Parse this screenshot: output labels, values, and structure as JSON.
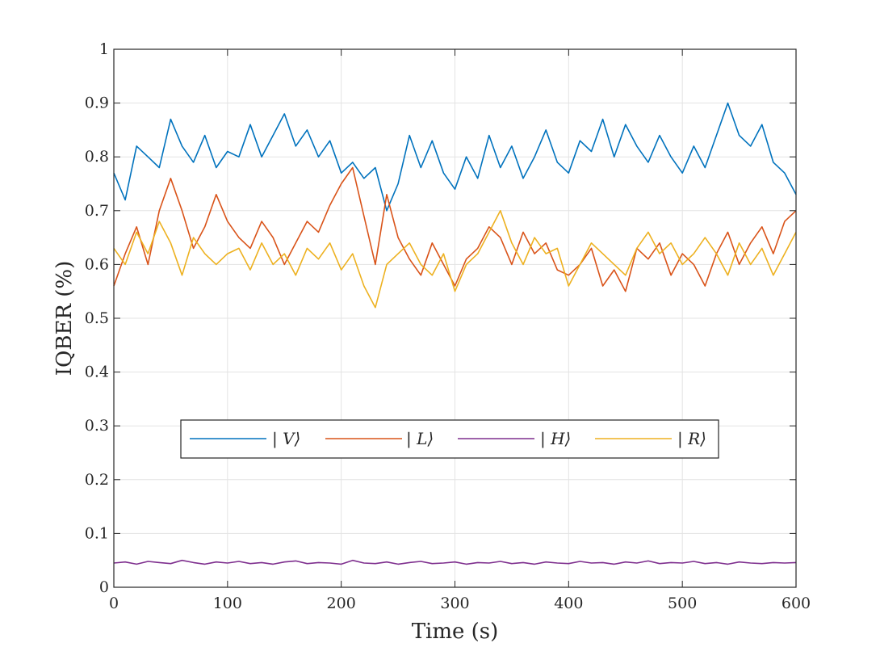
{
  "chart_data": {
    "type": "line",
    "title": "",
    "xlabel": "Time (s)",
    "ylabel": "IQBER (%)",
    "xlim": [
      0,
      600
    ],
    "ylim": [
      0,
      1
    ],
    "xticks": [
      0,
      100,
      200,
      300,
      400,
      500,
      600
    ],
    "yticks": [
      0,
      0.1,
      0.2,
      0.3,
      0.4,
      0.5,
      0.6,
      0.7,
      0.8,
      0.9,
      1
    ],
    "ytick_labels": [
      "0",
      "0.1",
      "0.2",
      "0.3",
      "0.4",
      "0.5",
      "0.6",
      "0.7",
      "0.8",
      "0.9",
      "1"
    ],
    "grid": true,
    "legend_position": "center, single row",
    "x": [
      0,
      10,
      20,
      30,
      40,
      50,
      60,
      70,
      80,
      90,
      100,
      110,
      120,
      130,
      140,
      150,
      160,
      170,
      180,
      190,
      200,
      210,
      220,
      230,
      240,
      250,
      260,
      270,
      280,
      290,
      300,
      310,
      320,
      330,
      340,
      350,
      360,
      370,
      380,
      390,
      400,
      410,
      420,
      430,
      440,
      450,
      460,
      470,
      480,
      490,
      500,
      510,
      520,
      530,
      540,
      550,
      560,
      570,
      580,
      590,
      600
    ],
    "series": [
      {
        "name": "| V⟩",
        "color": "#0072BD",
        "values": [
          0.77,
          0.72,
          0.82,
          0.8,
          0.78,
          0.87,
          0.82,
          0.79,
          0.84,
          0.78,
          0.81,
          0.8,
          0.86,
          0.8,
          0.84,
          0.88,
          0.82,
          0.85,
          0.8,
          0.83,
          0.77,
          0.79,
          0.76,
          0.78,
          0.7,
          0.75,
          0.84,
          0.78,
          0.83,
          0.77,
          0.74,
          0.8,
          0.76,
          0.84,
          0.78,
          0.82,
          0.76,
          0.8,
          0.85,
          0.79,
          0.77,
          0.83,
          0.81,
          0.87,
          0.8,
          0.86,
          0.82,
          0.79,
          0.84,
          0.8,
          0.77,
          0.82,
          0.78,
          0.84,
          0.9,
          0.84,
          0.82,
          0.86,
          0.79,
          0.77,
          0.73
        ]
      },
      {
        "name": "| L⟩",
        "color": "#D95319",
        "values": [
          0.56,
          0.62,
          0.67,
          0.6,
          0.7,
          0.76,
          0.7,
          0.63,
          0.67,
          0.73,
          0.68,
          0.65,
          0.63,
          0.68,
          0.65,
          0.6,
          0.64,
          0.68,
          0.66,
          0.71,
          0.75,
          0.78,
          0.69,
          0.6,
          0.73,
          0.65,
          0.61,
          0.58,
          0.64,
          0.6,
          0.56,
          0.61,
          0.63,
          0.67,
          0.65,
          0.6,
          0.66,
          0.62,
          0.64,
          0.59,
          0.58,
          0.6,
          0.63,
          0.56,
          0.59,
          0.55,
          0.63,
          0.61,
          0.64,
          0.58,
          0.62,
          0.6,
          0.56,
          0.62,
          0.66,
          0.6,
          0.64,
          0.67,
          0.62,
          0.68,
          0.7
        ]
      },
      {
        "name": "| H⟩",
        "color": "#7E2F8E",
        "values": [
          0.045,
          0.047,
          0.043,
          0.048,
          0.046,
          0.044,
          0.05,
          0.046,
          0.043,
          0.047,
          0.045,
          0.048,
          0.044,
          0.046,
          0.043,
          0.047,
          0.049,
          0.044,
          0.046,
          0.045,
          0.043,
          0.05,
          0.045,
          0.044,
          0.047,
          0.043,
          0.046,
          0.048,
          0.044,
          0.045,
          0.047,
          0.043,
          0.046,
          0.045,
          0.048,
          0.044,
          0.046,
          0.043,
          0.047,
          0.045,
          0.044,
          0.048,
          0.045,
          0.046,
          0.043,
          0.047,
          0.045,
          0.049,
          0.044,
          0.046,
          0.045,
          0.048,
          0.044,
          0.046,
          0.043,
          0.047,
          0.045,
          0.044,
          0.046,
          0.045,
          0.046
        ]
      },
      {
        "name": "| R⟩",
        "color": "#EDB120",
        "values": [
          0.63,
          0.6,
          0.66,
          0.62,
          0.68,
          0.64,
          0.58,
          0.65,
          0.62,
          0.6,
          0.62,
          0.63,
          0.59,
          0.64,
          0.6,
          0.62,
          0.58,
          0.63,
          0.61,
          0.64,
          0.59,
          0.62,
          0.56,
          0.52,
          0.6,
          0.62,
          0.64,
          0.6,
          0.58,
          0.62,
          0.55,
          0.6,
          0.62,
          0.66,
          0.7,
          0.64,
          0.6,
          0.65,
          0.62,
          0.63,
          0.56,
          0.6,
          0.64,
          0.62,
          0.6,
          0.58,
          0.63,
          0.66,
          0.62,
          0.64,
          0.6,
          0.62,
          0.65,
          0.62,
          0.58,
          0.64,
          0.6,
          0.63,
          0.58,
          0.62,
          0.66
        ]
      }
    ]
  }
}
